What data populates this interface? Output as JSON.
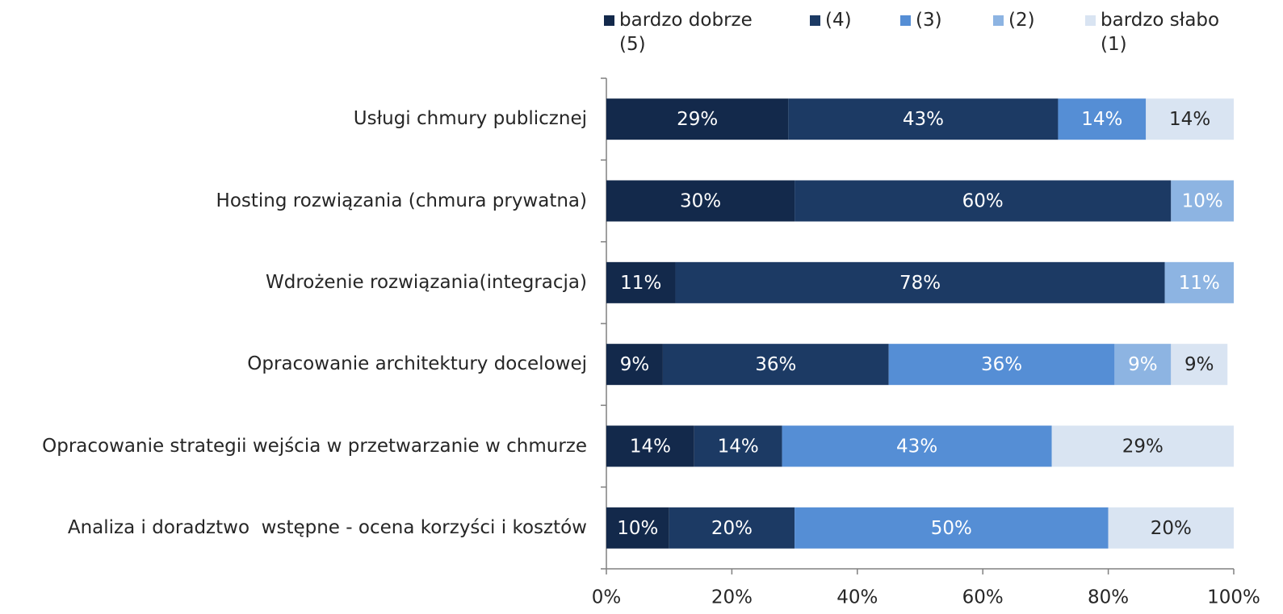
{
  "chart_data": {
    "type": "stacked-barh",
    "categories": [
      "Usługi chmury publicznej",
      "Hosting rozwiązania (chmura prywatna)",
      "Wdrożenie rozwiązania(integracja)",
      "Opracowanie architektury docelowej",
      "Opracowanie strategii wejścia w przetwarzanie w chmurze",
      "Analiza i doradztwo  wstępne - ocena korzyści i kosztów"
    ],
    "series": [
      {
        "name": "bardzo dobrze (5)",
        "color": "#13294b",
        "values": [
          29,
          30,
          11,
          9,
          14,
          10
        ],
        "value_labels": [
          "29%",
          "30%",
          "11%",
          "9%",
          "14%",
          "10%"
        ]
      },
      {
        "name": "(4)",
        "color": "#1c3a64",
        "values": [
          43,
          60,
          78,
          36,
          14,
          20
        ],
        "value_labels": [
          "43%",
          "60%",
          "78%",
          "36%",
          "14%",
          "20%"
        ]
      },
      {
        "name": "(3)",
        "color": "#558ed5",
        "values": [
          14,
          null,
          null,
          36,
          43,
          50
        ],
        "value_labels": [
          "14%",
          null,
          null,
          "36%",
          "43%",
          "50%"
        ]
      },
      {
        "name": "(2)",
        "color": "#8db4e2",
        "values": [
          null,
          10,
          11,
          9,
          null,
          null
        ],
        "value_labels": [
          null,
          "10%",
          "11%",
          "9%",
          null,
          null
        ]
      },
      {
        "name": "bardzo słabo (1)",
        "color": "#d9e4f2",
        "values": [
          14,
          null,
          null,
          9,
          29,
          20
        ],
        "value_labels": [
          "14%",
          null,
          null,
          "9%",
          "29%",
          "20%"
        ]
      }
    ],
    "xlim": [
      0,
      100
    ],
    "xticks": [
      {
        "value": 0,
        "label": "0%"
      },
      {
        "value": 20,
        "label": "20%"
      },
      {
        "value": 40,
        "label": "40%"
      },
      {
        "value": 60,
        "label": "60%"
      },
      {
        "value": 80,
        "label": "80%"
      },
      {
        "value": 100,
        "label": "100%"
      }
    ],
    "legend": "top"
  }
}
